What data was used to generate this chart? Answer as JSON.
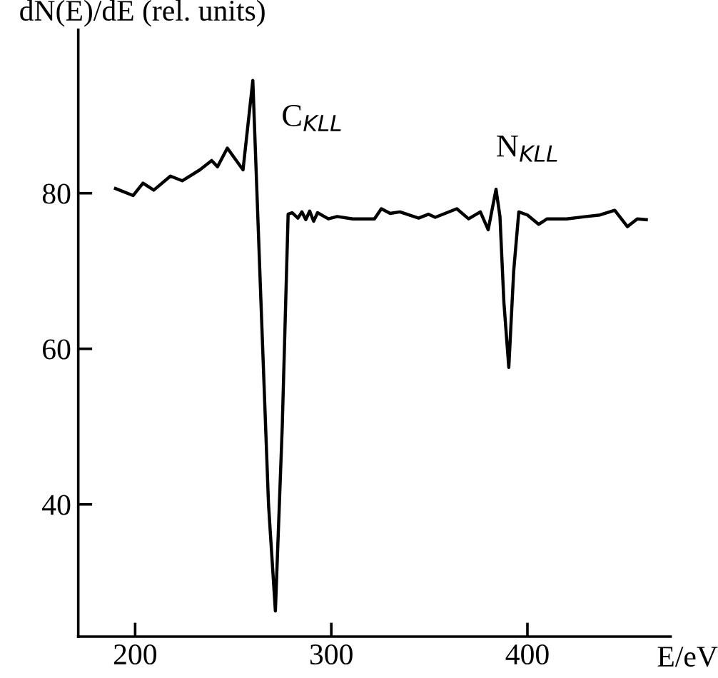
{
  "chart_data": {
    "type": "line",
    "ylabel": "dN(E)/dE (rel. units)",
    "xlabel": "E/eV",
    "annotations": [
      "C$_{KLL}$",
      "N$_{KLL}$"
    ],
    "x": [
      190,
      199,
      204,
      209.5,
      218,
      224,
      233,
      239,
      242,
      247,
      255,
      260,
      264,
      268,
      271.5,
      275,
      278,
      280,
      283,
      285,
      287,
      289,
      291,
      293,
      298.5,
      303,
      311,
      322,
      325.5,
      330,
      335,
      344.5,
      349.6,
      353,
      364,
      370,
      376,
      380,
      384,
      386,
      388,
      390.5,
      393,
      395.6,
      400,
      405.7,
      410,
      420,
      430,
      437,
      444.5,
      451,
      456,
      460.6
    ],
    "series": [
      {
        "color": "#000000",
        "values": [
          80.6,
          79.7,
          81.3,
          80.4,
          82.2,
          81.6,
          83,
          84.2,
          83.4,
          85.8,
          83,
          94.5,
          67,
          40,
          26.3,
          50,
          77.3,
          77.5,
          76.8,
          77.6,
          76.6,
          77.7,
          76.4,
          77.5,
          76.7,
          77,
          76.7,
          76.7,
          78,
          77.4,
          77.6,
          76.8,
          77.3,
          76.9,
          78,
          76.7,
          77.6,
          75.3,
          80.5,
          77,
          66,
          57.6,
          70,
          77.6,
          77.2,
          76,
          76.7,
          76.7,
          77,
          77.2,
          77.8,
          75.7,
          76.7,
          76.6
        ]
      }
    ],
    "xlim": [
      171,
      473
    ],
    "ylim": [
      23,
      101
    ],
    "xticks": [
      200,
      300,
      400
    ],
    "yticks": [
      40,
      60,
      80
    ],
    "grid": false,
    "legend": false,
    "marker": "none",
    "line_style": "solid"
  }
}
